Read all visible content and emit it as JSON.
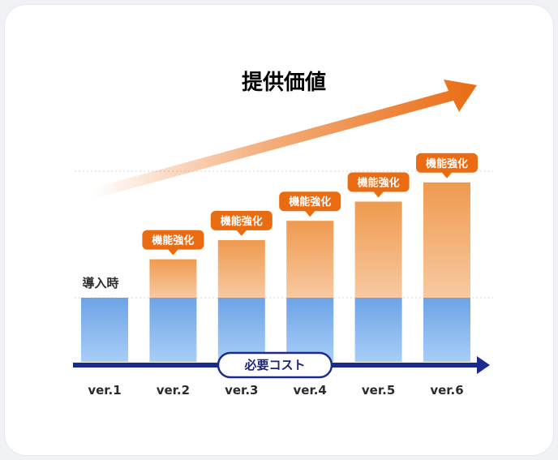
{
  "chart_data": {
    "type": "bar",
    "title": "提供価値",
    "categories": [
      "ver.1",
      "ver.2",
      "ver.3",
      "ver.4",
      "ver.5",
      "ver.6"
    ],
    "series": [
      {
        "name": "",
        "values": [
          1,
          1,
          1,
          1,
          1,
          1
        ]
      },
      {
        "name": "",
        "values": [
          0,
          0.6,
          0.9,
          1.2,
          1.5,
          1.8
        ]
      }
    ],
    "bar_labels": [
      "",
      "機能強化",
      "機能強化",
      "機能強化",
      "機能強化",
      "機能強化"
    ],
    "baseline_label": "導入時",
    "cost_axis_label": "必要コスト",
    "colors": {
      "base_top": "#6da3e6",
      "base_bottom": "#a8cdf7",
      "extra_top": "#ef9a4e",
      "extra_bottom": "#f8c9a2",
      "bubble": "#ea6c12",
      "title": "#ea6c12",
      "cost_axis": "#1a2b8c"
    }
  }
}
